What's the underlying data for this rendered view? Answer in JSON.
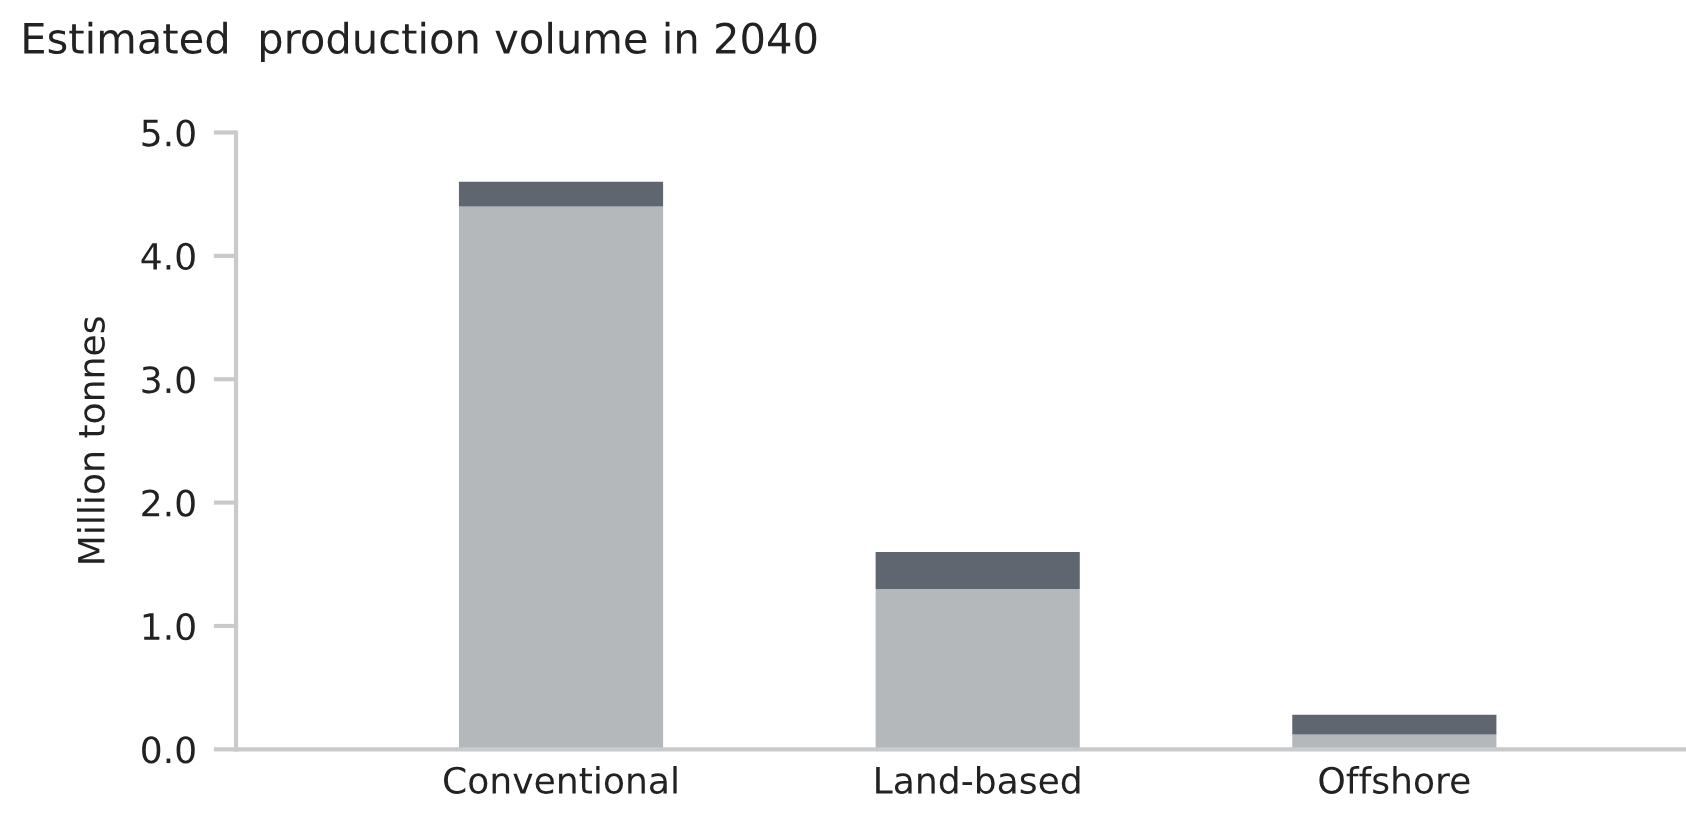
{
  "chart_data": {
    "type": "bar",
    "title": "Estimated  production volume in 2040",
    "ylabel": "Million tonnes",
    "categories": [
      "Conventional",
      "Land-based",
      "Offshore"
    ],
    "stacked": true,
    "series": [
      {
        "color": "#b5b8bb",
        "values": [
          4.4,
          1.3,
          0.12
        ]
      },
      {
        "color": "#5f6670",
        "values": [
          0.2,
          0.3,
          0.16
        ]
      }
    ],
    "ylim": [
      0,
      5
    ],
    "yticks": [
      {
        "value": 0,
        "label": "0.0"
      },
      {
        "value": 1,
        "label": "1.0"
      },
      {
        "value": 2,
        "label": "2.0"
      },
      {
        "value": 3,
        "label": "3.0"
      },
      {
        "value": 4,
        "label": "4.0"
      },
      {
        "value": 5,
        "label": "5.0"
      }
    ],
    "grid": false,
    "legend": false
  }
}
